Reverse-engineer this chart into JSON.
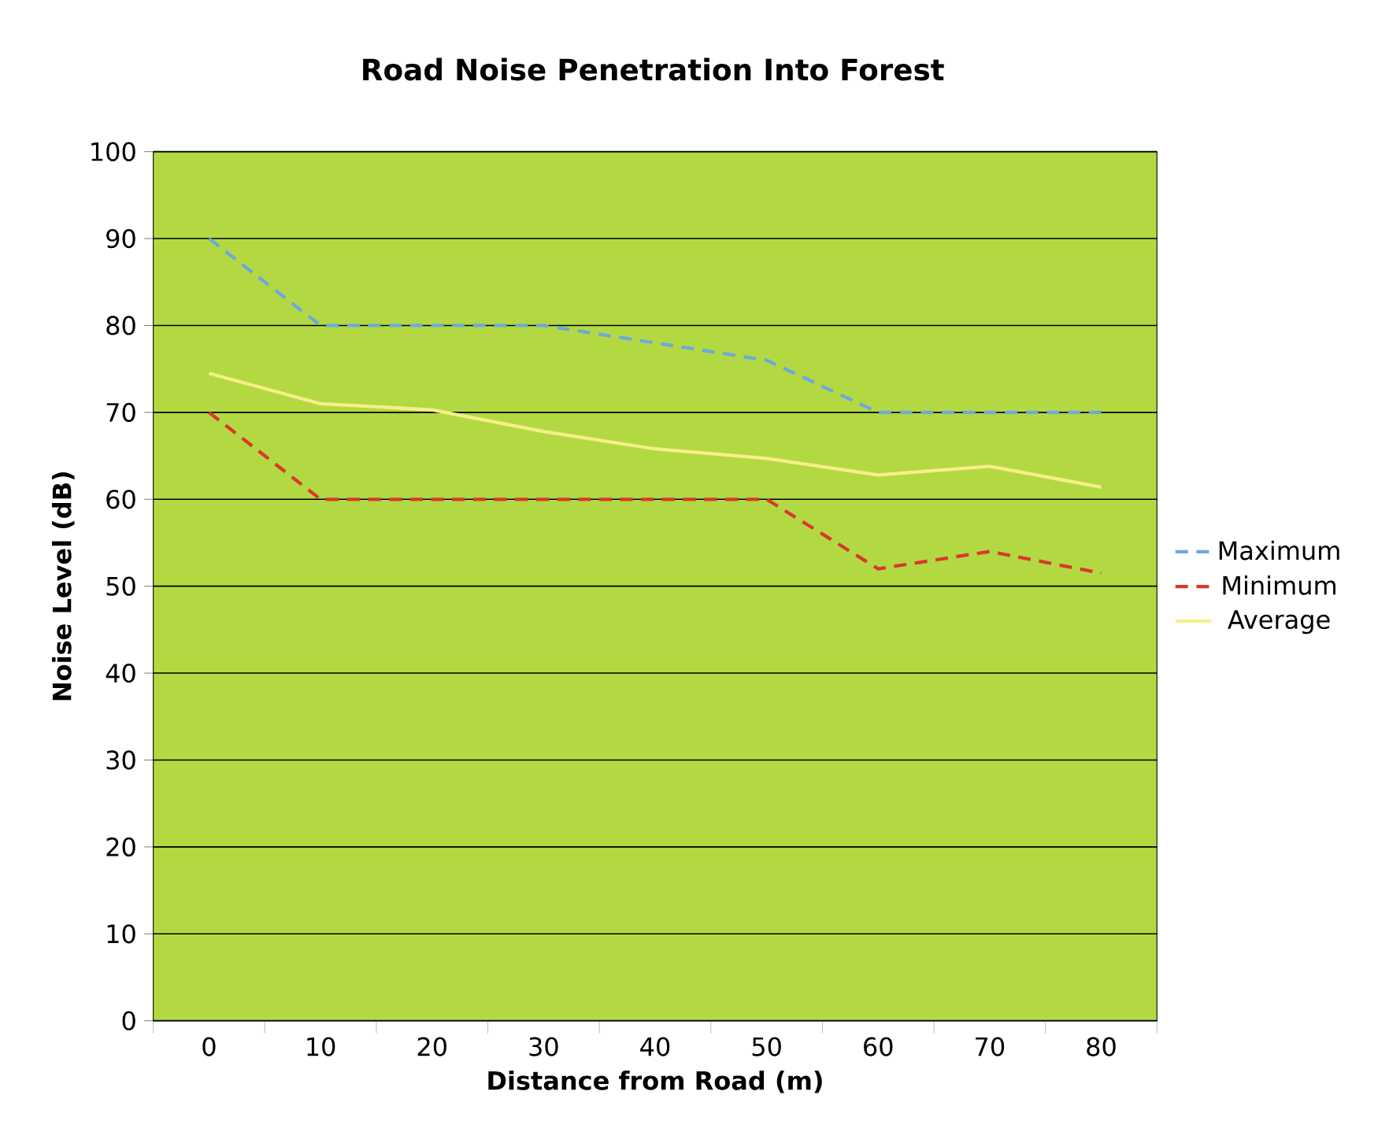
{
  "chart_data": {
    "type": "line",
    "title": "Road Noise Penetration Into Forest",
    "xlabel": "Distance from Road (m)",
    "ylabel": "Noise Level (dB)",
    "categories": [
      "0",
      "10",
      "20",
      "30",
      "40",
      "50",
      "60",
      "70",
      "80"
    ],
    "series": [
      {
        "name": "Maximum",
        "color": "#6fa8dc",
        "line_style": "dashed",
        "values": [
          90,
          80,
          80,
          80,
          78,
          76,
          70,
          70,
          70
        ]
      },
      {
        "name": "Minimum",
        "color": "#d9382e",
        "line_style": "dashed",
        "values": [
          70,
          60,
          60,
          60,
          60,
          60,
          52,
          54,
          51.5
        ]
      },
      {
        "name": "Average",
        "color": "#f5ef8a",
        "line_style": "solid",
        "values": [
          74.5,
          71,
          70.3,
          67.8,
          65.8,
          64.7,
          62.8,
          63.8,
          61.4
        ]
      }
    ],
    "ylim": [
      0,
      100
    ],
    "yticks": [
      0,
      10,
      20,
      30,
      40,
      50,
      60,
      70,
      80,
      90,
      100
    ],
    "grid": "y",
    "legend": "right",
    "marker": "none"
  }
}
